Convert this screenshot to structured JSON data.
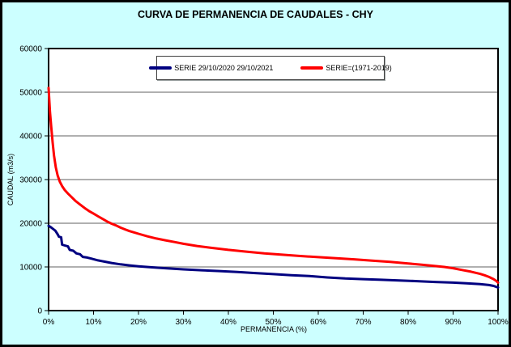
{
  "title": "CURVA DE PERMANENCIA DE CAUDALES - CHY",
  "colors": {
    "background": "#CCFFFF",
    "plot_bg": "#FFFFFF",
    "grid": "#808080",
    "axis": "#000000",
    "series_blue": "#000080",
    "series_red": "#FF0000"
  },
  "chart_data": {
    "type": "line",
    "title": "CURVA DE PERMANENCIA DE CAUDALES - CHY",
    "xlabel": "PERMANENCIA (%)",
    "ylabel": "CAUDAL (m3/s)",
    "xlim": [
      0,
      100
    ],
    "ylim": [
      0,
      60000
    ],
    "grid": "horizontal-only",
    "legend_position": "top-center-inside",
    "x_ticks": [
      0,
      10,
      20,
      30,
      40,
      50,
      60,
      70,
      80,
      90,
      100
    ],
    "x_tick_labels": [
      "0%",
      "10%",
      "20%",
      "30%",
      "40%",
      "50%",
      "60%",
      "70%",
      "80%",
      "90%",
      "100%"
    ],
    "y_ticks": [
      0,
      10000,
      20000,
      30000,
      40000,
      50000,
      60000
    ],
    "y_tick_labels": [
      "0",
      "10000",
      "20000",
      "30000",
      "40000",
      "50000",
      "60000"
    ],
    "series": [
      {
        "name": "SERIE 29/10/2020 29/10/2021",
        "color": "#000080",
        "points": [
          [
            0,
            19400
          ],
          [
            0.5,
            19100
          ],
          [
            1,
            18700
          ],
          [
            1.5,
            18300
          ],
          [
            2,
            17500
          ],
          [
            2.3,
            16900
          ],
          [
            2.8,
            16800
          ],
          [
            3,
            15100
          ],
          [
            3.6,
            14900
          ],
          [
            4.3,
            14700
          ],
          [
            4.7,
            13900
          ],
          [
            5.5,
            13700
          ],
          [
            6.2,
            13100
          ],
          [
            7,
            12900
          ],
          [
            7.6,
            12300
          ],
          [
            8.6,
            12150
          ],
          [
            9.5,
            11900
          ],
          [
            11,
            11500
          ],
          [
            12.5,
            11200
          ],
          [
            14,
            10900
          ],
          [
            16,
            10600
          ],
          [
            18,
            10350
          ],
          [
            20,
            10150
          ],
          [
            23,
            9900
          ],
          [
            26,
            9700
          ],
          [
            30,
            9450
          ],
          [
            34,
            9250
          ],
          [
            38,
            9050
          ],
          [
            42,
            8850
          ],
          [
            46,
            8600
          ],
          [
            50,
            8350
          ],
          [
            54,
            8100
          ],
          [
            58,
            7900
          ],
          [
            62,
            7600
          ],
          [
            66,
            7350
          ],
          [
            70,
            7200
          ],
          [
            74,
            7050
          ],
          [
            78,
            6900
          ],
          [
            82,
            6750
          ],
          [
            86,
            6550
          ],
          [
            90,
            6400
          ],
          [
            93,
            6250
          ],
          [
            96,
            6050
          ],
          [
            98,
            5850
          ],
          [
            99,
            5650
          ],
          [
            100,
            5300
          ]
        ]
      },
      {
        "name": "SERIE=(1971-2019)",
        "color": "#FF0000",
        "points": [
          [
            0,
            51000
          ],
          [
            0.3,
            45500
          ],
          [
            0.6,
            42000
          ],
          [
            0.9,
            38500
          ],
          [
            1.2,
            35500
          ],
          [
            1.6,
            32800
          ],
          [
            2,
            31000
          ],
          [
            2.5,
            29500
          ],
          [
            3,
            28500
          ],
          [
            3.6,
            27600
          ],
          [
            4.3,
            26800
          ],
          [
            5,
            26100
          ],
          [
            6,
            25100
          ],
          [
            7,
            24300
          ],
          [
            8,
            23500
          ],
          [
            9,
            22800
          ],
          [
            10,
            22200
          ],
          [
            11,
            21600
          ],
          [
            12,
            21000
          ],
          [
            13,
            20400
          ],
          [
            14,
            19900
          ],
          [
            15,
            19500
          ],
          [
            16,
            19000
          ],
          [
            17,
            18600
          ],
          [
            18,
            18200
          ],
          [
            19,
            17900
          ],
          [
            20,
            17600
          ],
          [
            22,
            17000
          ],
          [
            24,
            16500
          ],
          [
            26,
            16100
          ],
          [
            28,
            15700
          ],
          [
            30,
            15300
          ],
          [
            33,
            14800
          ],
          [
            36,
            14400
          ],
          [
            40,
            13900
          ],
          [
            44,
            13500
          ],
          [
            48,
            13100
          ],
          [
            52,
            12800
          ],
          [
            56,
            12500
          ],
          [
            60,
            12250
          ],
          [
            64,
            12000
          ],
          [
            68,
            11750
          ],
          [
            72,
            11450
          ],
          [
            76,
            11150
          ],
          [
            80,
            10800
          ],
          [
            83,
            10500
          ],
          [
            86,
            10200
          ],
          [
            88,
            10000
          ],
          [
            90,
            9700
          ],
          [
            92,
            9300
          ],
          [
            94,
            8900
          ],
          [
            96,
            8400
          ],
          [
            97,
            8100
          ],
          [
            98,
            7700
          ],
          [
            99,
            7200
          ],
          [
            99.6,
            6800
          ],
          [
            100,
            6400
          ]
        ]
      }
    ]
  }
}
